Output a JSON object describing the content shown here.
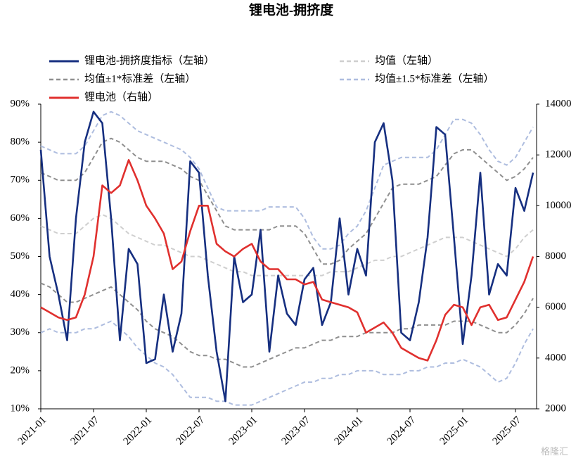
{
  "chart_data": {
    "type": "line",
    "title": "锂电池-拥挤度",
    "watermark": "格隆汇",
    "x": [
      "2021-01",
      "2021-02",
      "2021-03",
      "2021-04",
      "2021-05",
      "2021-06",
      "2021-07",
      "2021-08",
      "2021-09",
      "2021-10",
      "2021-11",
      "2021-12",
      "2022-01",
      "2022-02",
      "2022-03",
      "2022-04",
      "2022-05",
      "2022-06",
      "2022-07",
      "2022-08",
      "2022-09",
      "2022-10",
      "2022-11",
      "2022-12",
      "2023-01",
      "2023-02",
      "2023-03",
      "2023-04",
      "2023-05",
      "2023-06",
      "2023-07",
      "2023-08",
      "2023-09",
      "2023-10",
      "2023-11",
      "2023-12",
      "2024-01",
      "2024-02",
      "2024-03",
      "2024-04",
      "2024-05",
      "2024-06",
      "2024-07",
      "2024-08",
      "2024-09",
      "2024-10",
      "2024-11",
      "2024-12",
      "2025-01",
      "2025-02",
      "2025-03",
      "2025-04",
      "2025-05",
      "2025-06",
      "2025-07",
      "2025-08",
      "2025-09"
    ],
    "xticks": [
      "2021-01",
      "2021-07",
      "2022-01",
      "2022-07",
      "2023-01",
      "2023-07",
      "2024-01",
      "2024-07",
      "2025-01",
      "2025-07"
    ],
    "ylim": [
      10,
      90
    ],
    "yticks": [
      {
        "value": 10,
        "label": "10%"
      },
      {
        "value": 20,
        "label": "20%"
      },
      {
        "value": 30,
        "label": "30%"
      },
      {
        "value": 40,
        "label": "40%"
      },
      {
        "value": 50,
        "label": "50%"
      },
      {
        "value": 60,
        "label": "60%"
      },
      {
        "value": 70,
        "label": "70%"
      },
      {
        "value": 80,
        "label": "80%"
      },
      {
        "value": 90,
        "label": "90%"
      }
    ],
    "y2lim": [
      2000,
      14000
    ],
    "y2ticks": [
      2000,
      4000,
      6000,
      8000,
      10000,
      12000,
      14000
    ],
    "series": [
      {
        "name": "锂电池-拥挤度指标（左轴）",
        "color": "#162f80",
        "dash": false,
        "values": [
          78,
          50,
          40,
          28,
          60,
          80,
          88,
          85,
          60,
          28,
          52,
          48,
          22,
          23,
          40,
          25,
          35,
          75,
          72,
          45,
          25,
          12,
          50,
          38,
          40,
          57,
          25,
          45,
          35,
          32,
          44,
          47,
          32,
          38,
          60,
          40,
          52,
          45,
          80,
          85,
          70,
          30,
          28,
          38,
          55,
          84,
          82,
          55,
          27,
          45,
          72,
          40,
          48,
          45,
          68,
          62,
          72
        ]
      },
      {
        "name": "均值（左轴）",
        "color": "#cfcfcf",
        "dash": true,
        "values": [
          58,
          57,
          56,
          56,
          56,
          58,
          60,
          61,
          60,
          58,
          56,
          55,
          54,
          53,
          53,
          52,
          51,
          50,
          50,
          49,
          48,
          47,
          46,
          46,
          45,
          45,
          45,
          45,
          45,
          45,
          45,
          45,
          45,
          46,
          46,
          46,
          47,
          48,
          49,
          49,
          50,
          50,
          51,
          52,
          53,
          54,
          55,
          55,
          55,
          54,
          53,
          52,
          51,
          50,
          52,
          55,
          57
        ]
      },
      {
        "name": "均值±1*标准差（左轴）",
        "color": "#8f8f8f",
        "dash": true,
        "upper": [
          72,
          71,
          70,
          70,
          70,
          72,
          76,
          80,
          81,
          80,
          78,
          76,
          75,
          75,
          75,
          74,
          73,
          71,
          70,
          66,
          62,
          58,
          57,
          57,
          57,
          57,
          57,
          58,
          58,
          58,
          56,
          52,
          48,
          48,
          49,
          52,
          54,
          56,
          60,
          64,
          68,
          69,
          69,
          69,
          70,
          71,
          74,
          77,
          78,
          78,
          76,
          74,
          72,
          70,
          71,
          73,
          76
        ],
        "lower": [
          43,
          42,
          40,
          38,
          38,
          39,
          40,
          41,
          42,
          40,
          38,
          36,
          33,
          31,
          30,
          29,
          27,
          25,
          24,
          24,
          23,
          23,
          22,
          21,
          21,
          22,
          23,
          24,
          25,
          26,
          26,
          27,
          28,
          28,
          29,
          29,
          29,
          30,
          30,
          30,
          30,
          31,
          31,
          32,
          32,
          32,
          32,
          33,
          33,
          33,
          32,
          31,
          30,
          30,
          32,
          35,
          39
        ]
      },
      {
        "name": "均值±1.5*标准差（左轴）",
        "color": "#aebddf",
        "dash": true,
        "upper": [
          79,
          78,
          77,
          77,
          77,
          79,
          83,
          87,
          88,
          87,
          85,
          83,
          82,
          81,
          80,
          79,
          78,
          76,
          73,
          68,
          63,
          62,
          62,
          62,
          62,
          62,
          63,
          63,
          63,
          63,
          60,
          55,
          52,
          52,
          53,
          56,
          58,
          62,
          68,
          74,
          75,
          76,
          76,
          76,
          76,
          78,
          82,
          86,
          86,
          85,
          82,
          78,
          75,
          74,
          76,
          80,
          84
        ],
        "lower": [
          30,
          31,
          30,
          30,
          30,
          31,
          31,
          32,
          33,
          31,
          29,
          26,
          24,
          22,
          21,
          19,
          16,
          13,
          13,
          13,
          12,
          12,
          11,
          11,
          11,
          12,
          13,
          14,
          15,
          16,
          17,
          17,
          18,
          18,
          19,
          19,
          20,
          20,
          20,
          19,
          19,
          19,
          20,
          20,
          21,
          21,
          22,
          22,
          23,
          22,
          21,
          19,
          17,
          18,
          22,
          27,
          31
        ]
      },
      {
        "name": "锂电池（右轴）",
        "color": "#e0302e",
        "dash": false,
        "axis": "y2",
        "values": [
          6000,
          5800,
          5600,
          5500,
          5600,
          6500,
          8000,
          10800,
          10500,
          10800,
          11800,
          11000,
          10000,
          9500,
          8900,
          7500,
          7800,
          9000,
          10000,
          10000,
          8500,
          8200,
          8000,
          8300,
          8500,
          7800,
          7500,
          7500,
          7100,
          7100,
          6900,
          7000,
          6300,
          6200,
          6100,
          6000,
          5800,
          5000,
          5200,
          5400,
          5000,
          4400,
          4200,
          4000,
          3900,
          4700,
          5700,
          6100,
          6000,
          5300,
          6000,
          6100,
          5500,
          5600,
          6300,
          7000,
          8000
        ]
      }
    ]
  }
}
